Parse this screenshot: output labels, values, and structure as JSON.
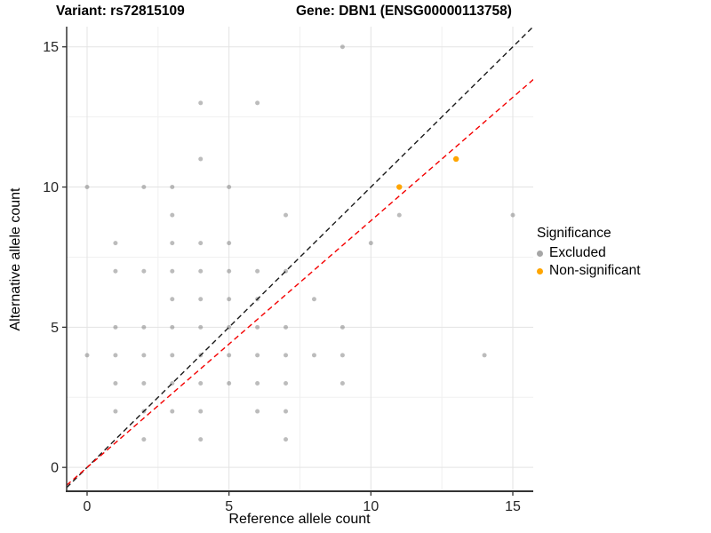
{
  "header": {
    "variant_title": "Variant: rs72815109",
    "gene_title": "Gene: DBN1 (ENSG00000113758)"
  },
  "chart_data": {
    "type": "scatter",
    "title": "Variant: rs72815109 — Gene: DBN1 (ENSG00000113758)",
    "xlabel": "Reference allele count",
    "ylabel": "Alternative allele count",
    "xlim": [
      -0.72,
      15.72
    ],
    "ylim": [
      -0.85,
      15.72
    ],
    "x_ticks": [
      0,
      5,
      10,
      15
    ],
    "y_ticks": [
      0,
      5,
      10,
      15
    ],
    "x_minor_ticks": [
      2.5,
      7.5,
      12.5
    ],
    "y_minor_ticks": [
      2.5,
      7.5,
      12.5
    ],
    "grid": "major and minor, light gray on white",
    "legend": {
      "title": "Significance",
      "position": "right",
      "entries": [
        {
          "label": "Excluded",
          "color": "#A6A6A6"
        },
        {
          "label": "Non-significant",
          "color": "#FFA500"
        }
      ]
    },
    "series": [
      {
        "name": "Excluded",
        "color": "#6B6B6B",
        "opacity": 0.45,
        "radius": 2.5,
        "points": [
          [
            9,
            15
          ],
          [
            4,
            13
          ],
          [
            6,
            13
          ],
          [
            4,
            11
          ],
          [
            0,
            10
          ],
          [
            2,
            10
          ],
          [
            3,
            10
          ],
          [
            5,
            10
          ],
          [
            3,
            9
          ],
          [
            7,
            9
          ],
          [
            11,
            9
          ],
          [
            15,
            9
          ],
          [
            1,
            8
          ],
          [
            3,
            8
          ],
          [
            4,
            8
          ],
          [
            5,
            8
          ],
          [
            10,
            8
          ],
          [
            1,
            7
          ],
          [
            2,
            7
          ],
          [
            3,
            7
          ],
          [
            4,
            7
          ],
          [
            5,
            7
          ],
          [
            6,
            7
          ],
          [
            7,
            7
          ],
          [
            3,
            6
          ],
          [
            4,
            6
          ],
          [
            5,
            6
          ],
          [
            6,
            6
          ],
          [
            8,
            6
          ],
          [
            1,
            5
          ],
          [
            2,
            5
          ],
          [
            3,
            5
          ],
          [
            4,
            5
          ],
          [
            5,
            5
          ],
          [
            6,
            5
          ],
          [
            7,
            5
          ],
          [
            9,
            5
          ],
          [
            0,
            4
          ],
          [
            1,
            4
          ],
          [
            2,
            4
          ],
          [
            3,
            4
          ],
          [
            4,
            4
          ],
          [
            5,
            4
          ],
          [
            6,
            4
          ],
          [
            7,
            4
          ],
          [
            8,
            4
          ],
          [
            9,
            4
          ],
          [
            14,
            4
          ],
          [
            1,
            3
          ],
          [
            2,
            3
          ],
          [
            3,
            3
          ],
          [
            4,
            3
          ],
          [
            5,
            3
          ],
          [
            6,
            3
          ],
          [
            7,
            3
          ],
          [
            9,
            3
          ],
          [
            1,
            2
          ],
          [
            2,
            2
          ],
          [
            3,
            2
          ],
          [
            4,
            2
          ],
          [
            6,
            2
          ],
          [
            7,
            2
          ],
          [
            2,
            1
          ],
          [
            4,
            1
          ],
          [
            7,
            1
          ]
        ]
      },
      {
        "name": "Non-significant",
        "color": "#FFA500",
        "opacity": 1,
        "radius": 3.2,
        "points": [
          [
            11,
            10
          ],
          [
            13,
            11
          ]
        ]
      }
    ],
    "lines": [
      {
        "name": "identity-line",
        "slope": 1,
        "intercept": 0,
        "color": "#1A1A1A",
        "dash": "6,4",
        "width": 1.4
      },
      {
        "name": "fit-line",
        "slope": 0.88,
        "intercept": 0,
        "color": "#F40000",
        "dash": "6,4",
        "width": 1.4
      }
    ],
    "colors": {
      "major_grid": "#E3E3E3",
      "minor_grid": "#F0F0F0",
      "axis_line": "#333333",
      "tick_label": "#262626"
    }
  }
}
